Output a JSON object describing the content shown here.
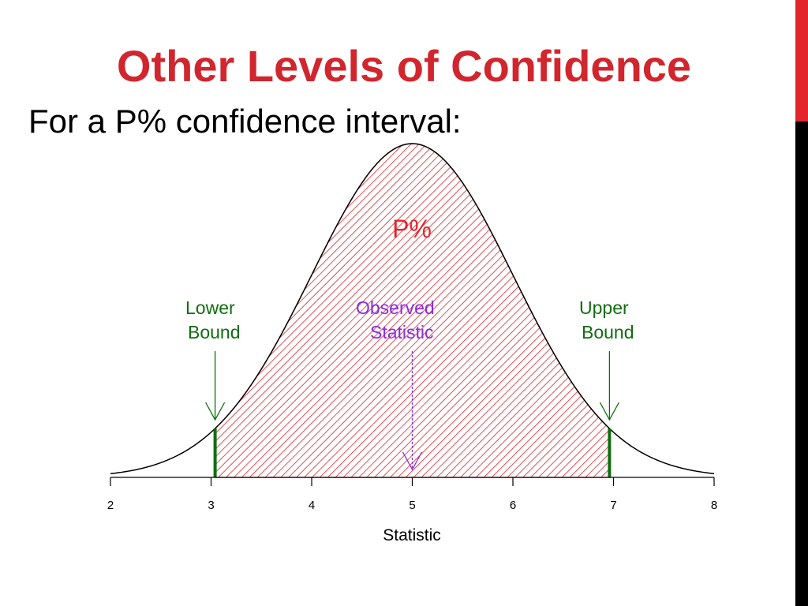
{
  "slide": {
    "title": "Other Levels of Confidence",
    "subtitle": "For a P% confidence interval:"
  },
  "colors": {
    "title": "#d1262e",
    "region_fill": "#d7262d",
    "bounds": "#0f6e0f",
    "observed": "#8a2be2",
    "curve": "#000000",
    "accent_bar_top": "#e2262c",
    "accent_bar_bottom": "#000000"
  },
  "chart_data": {
    "type": "area",
    "distribution": "normal",
    "mean": 5,
    "sd": 1,
    "xlim": [
      2,
      8
    ],
    "x_ticks": [
      "2",
      "3",
      "4",
      "5",
      "6",
      "7",
      "8"
    ],
    "xlabel": "Statistic",
    "shaded_interval": [
      3.04,
      6.96
    ],
    "shaded_label": "P%",
    "annotations": [
      {
        "label_line1": "Lower",
        "label_line2": "Bound",
        "x": 3.04,
        "color": "#0f6e0f"
      },
      {
        "label_line1": "Observed",
        "label_line2": "Statistic",
        "x": 5,
        "color": "#8a2be2"
      },
      {
        "label_line1": "Upper",
        "label_line2": "Bound",
        "x": 6.96,
        "color": "#0f6e0f"
      }
    ]
  }
}
